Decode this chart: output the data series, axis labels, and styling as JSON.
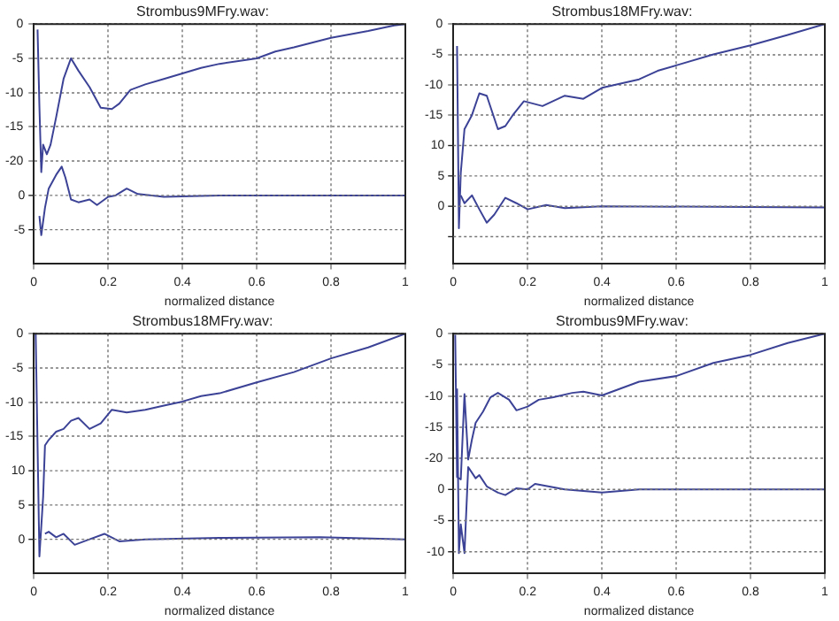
{
  "chart_data": [
    {
      "type": "line",
      "title": "Strombus9MFry.wav:",
      "xlabel": "normalized distance",
      "xlim": [
        0,
        1
      ],
      "xticks": [
        0,
        0.2,
        0.4,
        0.6,
        0.8,
        1
      ],
      "ylim": [
        -35,
        0
      ],
      "yticks": [
        0,
        -5,
        -10,
        -15,
        -20
      ],
      "y2lim": [
        -10,
        25
      ],
      "y2ticks": [
        0,
        -5
      ],
      "grid": true,
      "marker": "none",
      "line_style": "solid",
      "series": [
        {
          "color": "#3c4396",
          "x": [
            0.01,
            0.015,
            0.02,
            0.025,
            0.035,
            0.045,
            0.06,
            0.08,
            0.1,
            0.12,
            0.15,
            0.18,
            0.21,
            0.23,
            0.26,
            0.3,
            0.35,
            0.4,
            0.45,
            0.5,
            0.6,
            0.65,
            0.7,
            0.8,
            0.9,
            0.97,
            1
          ],
          "values": [
            -0.8,
            -12,
            -21.6,
            -17.6,
            -19,
            -17.6,
            -13.6,
            -8,
            -5,
            -6.8,
            -9.2,
            -12.2,
            -12.4,
            -11.6,
            -9.6,
            -8.8,
            -8,
            -7.2,
            -6.4,
            -5.8,
            -5,
            -4,
            -3.4,
            -2,
            -1,
            -0.2,
            0
          ]
        },
        {
          "color": "#3c4396",
          "axis": "y2",
          "x": [
            0.015,
            0.02,
            0.03,
            0.04,
            0.06,
            0.075,
            0.085,
            0.1,
            0.12,
            0.15,
            0.17,
            0.2,
            0.22,
            0.25,
            0.28,
            0.35,
            0.5,
            0.7,
            1
          ],
          "values": [
            -3,
            -5.8,
            -1.8,
            1,
            3,
            4.2,
            2.6,
            -0.6,
            -1,
            -0.6,
            -1.4,
            -0.2,
            0,
            1,
            0.2,
            -0.2,
            0,
            0,
            0
          ]
        }
      ]
    },
    {
      "type": "line",
      "title": "Strombus18MFry.wav:",
      "xlabel": "normalized distance",
      "xlim": [
        0,
        1
      ],
      "xticks": [
        0,
        0.2,
        0.4,
        0.6,
        0.8,
        1
      ],
      "ylim": [
        -39.5,
        0
      ],
      "yticks": [
        0,
        -5,
        -10,
        -15
      ],
      "y2lim": [
        -9.5,
        30
      ],
      "y2ticks": [
        10,
        5,
        0,
        {
          "value": -5,
          "label": null
        }
      ],
      "grid": true,
      "marker": "none",
      "line_style": "solid",
      "series": [
        {
          "color": "#3c4396",
          "x": [
            0.01,
            0.015,
            0.02,
            0.03,
            0.05,
            0.07,
            0.09,
            0.12,
            0.14,
            0.16,
            0.19,
            0.24,
            0.3,
            0.35,
            0.4,
            0.5,
            0.55,
            0.6,
            0.7,
            0.8,
            0.9,
            1
          ],
          "values": [
            -3.6,
            -33.6,
            -24.5,
            -17.3,
            -15,
            -11.4,
            -11.8,
            -17.3,
            -16.8,
            -15,
            -12.7,
            -13.5,
            -11.8,
            -12.3,
            -10.5,
            -9.1,
            -7.7,
            -6.8,
            -5,
            -3.5,
            -1.8,
            0
          ]
        },
        {
          "color": "#3c4396",
          "axis": "y2",
          "x": [
            0.02,
            0.03,
            0.05,
            0.07,
            0.09,
            0.11,
            0.14,
            0.17,
            0.2,
            0.25,
            0.3,
            0.4,
            1
          ],
          "values": [
            1.8,
            0.5,
            1.8,
            -0.5,
            -2.7,
            -1.4,
            1.4,
            0.5,
            -0.5,
            0.2,
            -0.3,
            0,
            -0.2
          ]
        }
      ]
    },
    {
      "type": "line",
      "title": "Strombus18MFry.wav:",
      "xlabel": "normalized distance",
      "xlim": [
        0,
        1
      ],
      "xticks": [
        0,
        0.2,
        0.4,
        0.6,
        0.8,
        1
      ],
      "ylim": [
        -35,
        0
      ],
      "yticks": [
        0,
        -5,
        -10,
        -15
      ],
      "y2lim": [
        -5,
        30
      ],
      "y2ticks": [
        10,
        5,
        0
      ],
      "grid": true,
      "marker": "none",
      "line_style": "solid",
      "series": [
        {
          "color": "#3c4396",
          "x": [
            0.005,
            0.015,
            0.025,
            0.03,
            0.04,
            0.06,
            0.08,
            0.1,
            0.12,
            0.15,
            0.18,
            0.21,
            0.25,
            0.3,
            0.35,
            0.4,
            0.45,
            0.5,
            0.6,
            0.7,
            0.8,
            0.9,
            1
          ],
          "values": [
            0,
            -32.5,
            -23.8,
            -16.3,
            -15.5,
            -14.3,
            -13.9,
            -12.7,
            -12.3,
            -13.9,
            -13.1,
            -11.1,
            -11.5,
            -11.1,
            -10.5,
            -9.9,
            -9.1,
            -8.7,
            -7.1,
            -5.6,
            -3.6,
            -2,
            0
          ]
        },
        {
          "color": "#3c4396",
          "axis": "y2",
          "x": [
            0.03,
            0.04,
            0.06,
            0.08,
            0.11,
            0.15,
            0.19,
            0.23,
            0.3,
            0.5,
            0.77,
            1
          ],
          "values": [
            0.8,
            1.1,
            0.3,
            0.8,
            -0.8,
            0,
            0.8,
            -0.3,
            0,
            0.2,
            0.3,
            0
          ]
        }
      ]
    },
    {
      "type": "line",
      "title": "Strombus9MFry.wav:",
      "xlabel": "normalized distance",
      "xlim": [
        0,
        1
      ],
      "xticks": [
        0,
        0.2,
        0.4,
        0.6,
        0.8,
        1
      ],
      "ylim": [
        -38.5,
        0
      ],
      "yticks": [
        0,
        -5,
        -10,
        -15,
        -20
      ],
      "y2lim": [
        -13.5,
        25
      ],
      "y2ticks": [
        0,
        -5,
        -10
      ],
      "grid": true,
      "marker": "none",
      "line_style": "solid",
      "series": [
        {
          "color": "#3c4396",
          "x": [
            0.005,
            0.01,
            0.02,
            0.03,
            0.04,
            0.05,
            0.06,
            0.08,
            0.1,
            0.12,
            0.15,
            0.17,
            0.2,
            0.23,
            0.27,
            0.32,
            0.35,
            0.4,
            0.45,
            0.5,
            0.6,
            0.7,
            0.8,
            0.9,
            1
          ],
          "values": [
            -0.2,
            -23,
            -23.4,
            -9.7,
            -20.2,
            -17,
            -14.3,
            -12.5,
            -10.2,
            -9.5,
            -10.6,
            -12.3,
            -11.7,
            -10.6,
            -10.2,
            -9.5,
            -9.3,
            -9.9,
            -8.8,
            -7.7,
            -6.8,
            -4.7,
            -3.4,
            -1.5,
            0
          ]
        },
        {
          "color": "#3c4396",
          "axis": "y2",
          "x": [
            0.01,
            0.015,
            0.02,
            0.03,
            0.04,
            0.06,
            0.07,
            0.09,
            0.12,
            0.14,
            0.17,
            0.2,
            0.22,
            0.3,
            0.4,
            0.5,
            1
          ],
          "values": [
            16.2,
            -10.2,
            -5.6,
            -10.2,
            3.6,
            1.8,
            2.3,
            0.5,
            -0.5,
            -0.9,
            0.2,
            0,
            0.9,
            0,
            -0.5,
            0,
            0
          ]
        }
      ]
    }
  ]
}
